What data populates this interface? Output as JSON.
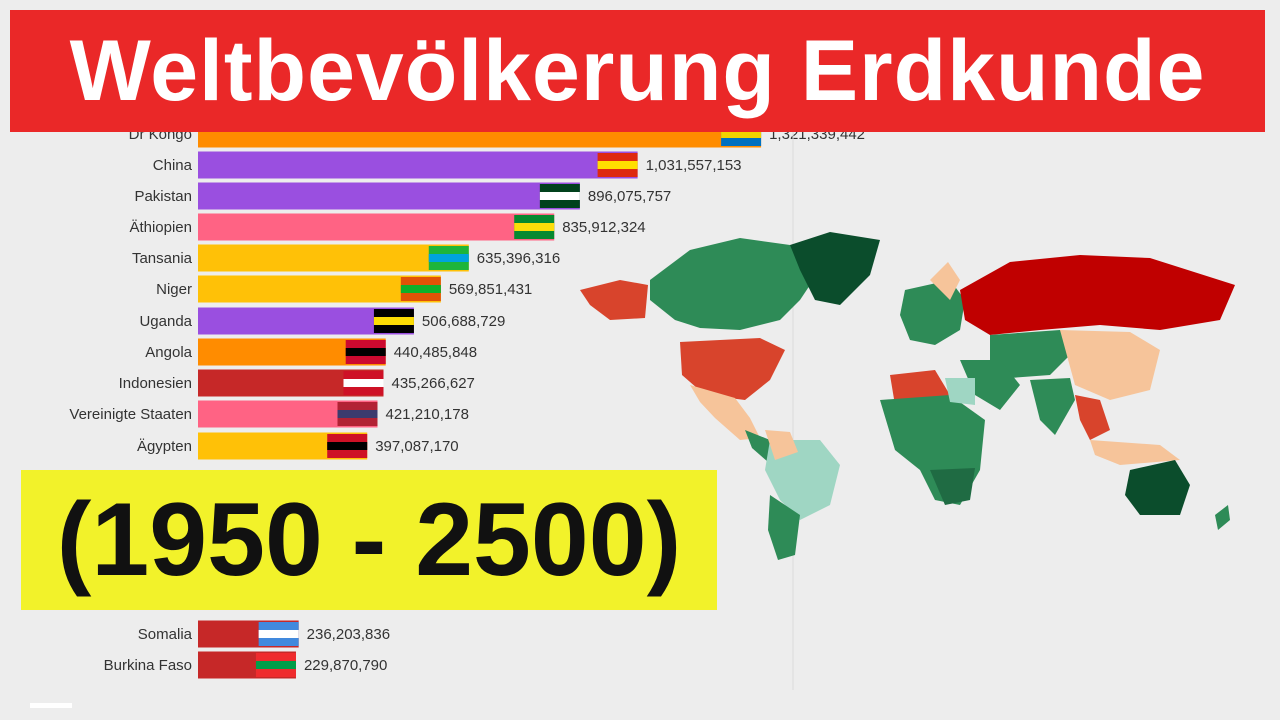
{
  "title": "Weltbevölkerung Erdkunde",
  "years_label": "(1950 - 2500)",
  "chart_data": {
    "type": "bar",
    "orientation": "horizontal",
    "xlim": [
      0,
      1300000000
    ],
    "bars": [
      {
        "label": "Dr Kongo",
        "value": 1321339442,
        "display": "1,321,339,442",
        "color": "#ff8c00"
      },
      {
        "label": "China",
        "value": 1031557153,
        "display": "1,031,557,153",
        "color": "#9a4fe0"
      },
      {
        "label": "Pakistan",
        "value": 896075757,
        "display": "896,075,757",
        "color": "#9a4fe0"
      },
      {
        "label": "Äthiopien",
        "value": 835912324,
        "display": "835,912,324",
        "color": "#ff6384"
      },
      {
        "label": "Tansania",
        "value": 635396316,
        "display": "635,396,316",
        "color": "#ffc107"
      },
      {
        "label": "Niger",
        "value": 569851431,
        "display": "569,851,431",
        "color": "#ffc107"
      },
      {
        "label": "Uganda",
        "value": 506688729,
        "display": "506,688,729",
        "color": "#9a4fe0"
      },
      {
        "label": "Angola",
        "value": 440485848,
        "display": "440,485,848",
        "color": "#ff8c00"
      },
      {
        "label": "Indonesien",
        "value": 435266627,
        "display": "435,266,627",
        "color": "#c62828"
      },
      {
        "label": "Vereinigte Staaten",
        "value": 421210178,
        "display": "421,210,178",
        "color": "#ff6384"
      },
      {
        "label": "Ägypten",
        "value": 397087170,
        "display": "397,087,170",
        "color": "#ffc107"
      },
      {
        "label": "Somalia",
        "value": 236203836,
        "display": "236,203,836",
        "color": "#c62828"
      },
      {
        "label": "Burkina Faso",
        "value": 229870790,
        "display": "229,870,790",
        "color": "#c62828"
      }
    ],
    "flags": [
      "dr-congo-flag-icon",
      "china-flag-icon",
      "pakistan-flag-icon",
      "ethiopia-flag-icon",
      "tanzania-flag-icon",
      "niger-flag-icon",
      "uganda-flag-icon",
      "angola-flag-icon",
      "indonesia-flag-icon",
      "usa-flag-icon",
      "egypt-flag-icon",
      "somalia-flag-icon",
      "burkina-faso-flag-icon"
    ]
  },
  "map": {
    "name": "world-population-growth-map"
  }
}
